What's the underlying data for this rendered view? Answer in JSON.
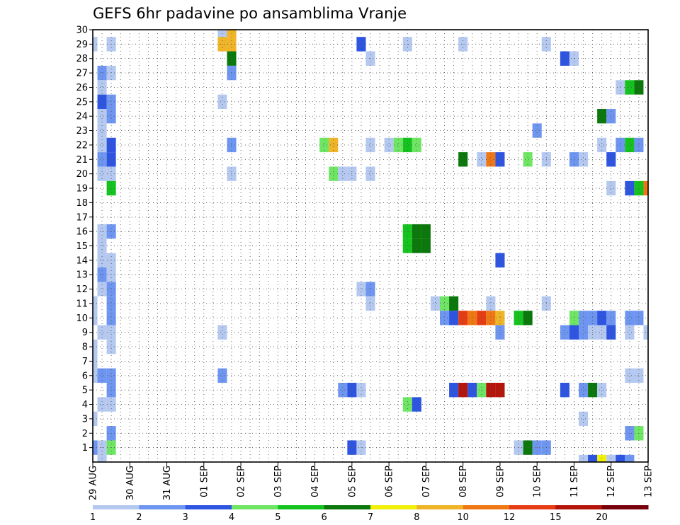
{
  "chart_data": {
    "type": "heatmap",
    "title": "GEFS 6hr padavine po ansamblima Vranje",
    "xlabel": "",
    "ylabel": "",
    "x_ticks": [
      "29 AUG",
      "30 AUG",
      "31 AUG",
      "01 SEP",
      "02 SEP",
      "03 SEP",
      "04 SEP",
      "05 SEP",
      "06 SEP",
      "07 SEP",
      "08 SEP",
      "09 SEP",
      "10 SEP",
      "11 SEP",
      "12 SEP",
      "13 SEP"
    ],
    "y_ticks": [
      1,
      2,
      3,
      4,
      5,
      6,
      7,
      8,
      9,
      10,
      11,
      12,
      13,
      14,
      15,
      16,
      17,
      18,
      19,
      20,
      21,
      22,
      23,
      24,
      25,
      26,
      27,
      28,
      29,
      30
    ],
    "x_range_steps": [
      0,
      60
    ],
    "y_range": [
      0,
      30
    ],
    "grid": true,
    "steps_per_day": 4,
    "colorbar": {
      "labels": [
        "1",
        "2",
        "3",
        "4",
        "5",
        "6",
        "7",
        "8",
        "10",
        "12",
        "15",
        "20"
      ],
      "colors": [
        "#b4c8f0",
        "#6e96f0",
        "#2d55e1",
        "#6ee664",
        "#14c31e",
        "#0a780a",
        "#f0f00a",
        "#f0b428",
        "#f07814",
        "#e63c14",
        "#b4140a",
        "#78000a"
      ]
    },
    "cells": [
      {
        "m": 30,
        "s": [
          [
            14,
            "#b4c8f0"
          ],
          [
            15,
            "#f0b428"
          ]
        ]
      },
      {
        "m": 29,
        "s": [
          [
            0,
            "#b4c8f0"
          ],
          [
            2,
            "#b4c8f0"
          ],
          [
            14,
            "#f0b428"
          ],
          [
            15,
            "#f0b428"
          ],
          [
            29,
            "#2d55e1"
          ],
          [
            34,
            "#b4c8f0"
          ],
          [
            40,
            "#b4c8f0"
          ],
          [
            49,
            "#b4c8f0"
          ]
        ]
      },
      {
        "m": 28,
        "s": [
          [
            15,
            "#0a780a"
          ],
          [
            30,
            "#b4c8f0"
          ],
          [
            51,
            "#2d55e1"
          ],
          [
            52,
            "#b4c8f0"
          ]
        ]
      },
      {
        "m": 27,
        "s": [
          [
            1,
            "#6e96f0"
          ],
          [
            2,
            "#b4c8f0"
          ],
          [
            15,
            "#6e96f0"
          ]
        ]
      },
      {
        "m": 26,
        "s": [
          [
            1,
            "#b4c8f0"
          ],
          [
            57,
            "#b4c8f0"
          ],
          [
            58,
            "#14c31e"
          ],
          [
            59,
            "#0a780a"
          ]
        ]
      },
      {
        "m": 25,
        "s": [
          [
            1,
            "#2d55e1"
          ],
          [
            2,
            "#6e96f0"
          ],
          [
            14,
            "#b4c8f0"
          ]
        ]
      },
      {
        "m": 24,
        "s": [
          [
            1,
            "#b4c8f0"
          ],
          [
            2,
            "#6e96f0"
          ],
          [
            55,
            "#0a780a"
          ],
          [
            56,
            "#6e96f0"
          ]
        ]
      },
      {
        "m": 23,
        "s": [
          [
            1,
            "#b4c8f0"
          ],
          [
            48,
            "#6e96f0"
          ]
        ]
      },
      {
        "m": 22,
        "s": [
          [
            1,
            "#b4c8f0"
          ],
          [
            2,
            "#2d55e1"
          ],
          [
            15,
            "#6e96f0"
          ],
          [
            25,
            "#6ee664"
          ],
          [
            26,
            "#f0b428"
          ],
          [
            30,
            "#b4c8f0"
          ],
          [
            32,
            "#b4c8f0"
          ],
          [
            33,
            "#6ee664"
          ],
          [
            34,
            "#14c31e"
          ],
          [
            35,
            "#6ee664"
          ],
          [
            55,
            "#b4c8f0"
          ],
          [
            57,
            "#6e96f0"
          ],
          [
            58,
            "#14c31e"
          ],
          [
            59,
            "#6e96f0"
          ]
        ]
      },
      {
        "m": 21,
        "s": [
          [
            1,
            "#6e96f0"
          ],
          [
            2,
            "#2d55e1"
          ],
          [
            40,
            "#0a780a"
          ],
          [
            42,
            "#b4c8f0"
          ],
          [
            43,
            "#f07814"
          ],
          [
            44,
            "#2d55e1"
          ],
          [
            47,
            "#6ee664"
          ],
          [
            49,
            "#b4c8f0"
          ],
          [
            52,
            "#6e96f0"
          ],
          [
            53,
            "#b4c8f0"
          ],
          [
            56,
            "#2d55e1"
          ]
        ]
      },
      {
        "m": 20,
        "s": [
          [
            1,
            "#b4c8f0"
          ],
          [
            2,
            "#b4c8f0"
          ],
          [
            15,
            "#b4c8f0"
          ],
          [
            26,
            "#6ee664"
          ],
          [
            27,
            "#b4c8f0"
          ],
          [
            28,
            "#b4c8f0"
          ],
          [
            30,
            "#b4c8f0"
          ]
        ]
      },
      {
        "m": 19,
        "s": [
          [
            2,
            "#14c31e"
          ],
          [
            56,
            "#b4c8f0"
          ],
          [
            58,
            "#2d55e1"
          ],
          [
            59,
            "#14c31e"
          ],
          [
            60,
            "#f07814"
          ]
        ]
      },
      {
        "m": 16,
        "s": [
          [
            1,
            "#b4c8f0"
          ],
          [
            2,
            "#6e96f0"
          ],
          [
            34,
            "#14c31e"
          ],
          [
            35,
            "#0a780a"
          ],
          [
            36,
            "#0a780a"
          ]
        ]
      },
      {
        "m": 15,
        "s": [
          [
            1,
            "#b4c8f0"
          ],
          [
            34,
            "#14c31e"
          ],
          [
            35,
            "#0a780a"
          ],
          [
            36,
            "#0a780a"
          ]
        ]
      },
      {
        "m": 14,
        "s": [
          [
            1,
            "#b4c8f0"
          ],
          [
            2,
            "#b4c8f0"
          ],
          [
            44,
            "#2d55e1"
          ]
        ]
      },
      {
        "m": 13,
        "s": [
          [
            1,
            "#6e96f0"
          ],
          [
            2,
            "#b4c8f0"
          ]
        ]
      },
      {
        "m": 12,
        "s": [
          [
            1,
            "#b4c8f0"
          ],
          [
            2,
            "#6e96f0"
          ],
          [
            29,
            "#b4c8f0"
          ],
          [
            30,
            "#6e96f0"
          ]
        ]
      },
      {
        "m": 11,
        "s": [
          [
            0,
            "#b4c8f0"
          ],
          [
            2,
            "#6e96f0"
          ],
          [
            30,
            "#b4c8f0"
          ],
          [
            37,
            "#b4c8f0"
          ],
          [
            38,
            "#6ee664"
          ],
          [
            39,
            "#0a780a"
          ],
          [
            43,
            "#b4c8f0"
          ],
          [
            49,
            "#b4c8f0"
          ]
        ]
      },
      {
        "m": 10,
        "s": [
          [
            0,
            "#b4c8f0"
          ],
          [
            2,
            "#6e96f0"
          ],
          [
            38,
            "#6e96f0"
          ],
          [
            39,
            "#2d55e1"
          ],
          [
            40,
            "#e63c14"
          ],
          [
            41,
            "#f07814"
          ],
          [
            42,
            "#e63c14"
          ],
          [
            43,
            "#f07814"
          ],
          [
            44,
            "#f0b428"
          ],
          [
            46,
            "#14c31e"
          ],
          [
            47,
            "#0a780a"
          ],
          [
            52,
            "#6ee664"
          ],
          [
            53,
            "#6e96f0"
          ],
          [
            54,
            "#6e96f0"
          ],
          [
            55,
            "#2d55e1"
          ],
          [
            56,
            "#6e96f0"
          ],
          [
            58,
            "#6e96f0"
          ],
          [
            59,
            "#6e96f0"
          ]
        ]
      },
      {
        "m": 9,
        "s": [
          [
            1,
            "#b4c8f0"
          ],
          [
            2,
            "#b4c8f0"
          ],
          [
            14,
            "#b4c8f0"
          ],
          [
            44,
            "#6e96f0"
          ],
          [
            51,
            "#6e96f0"
          ],
          [
            52,
            "#2d55e1"
          ],
          [
            53,
            "#6e96f0"
          ],
          [
            54,
            "#b4c8f0"
          ],
          [
            55,
            "#b4c8f0"
          ],
          [
            56,
            "#2d55e1"
          ],
          [
            58,
            "#b4c8f0"
          ],
          [
            60,
            "#b4c8f0"
          ]
        ]
      },
      {
        "m": 8,
        "s": [
          [
            0,
            "#b4c8f0"
          ],
          [
            2,
            "#b4c8f0"
          ]
        ]
      },
      {
        "m": 7,
        "s": [
          [
            0,
            "#b4c8f0"
          ]
        ]
      },
      {
        "m": 6,
        "s": [
          [
            0,
            "#b4c8f0"
          ],
          [
            1,
            "#6e96f0"
          ],
          [
            2,
            "#6e96f0"
          ],
          [
            14,
            "#6e96f0"
          ],
          [
            58,
            "#b4c8f0"
          ],
          [
            59,
            "#b4c8f0"
          ]
        ]
      },
      {
        "m": 5,
        "s": [
          [
            2,
            "#6e96f0"
          ],
          [
            27,
            "#6e96f0"
          ],
          [
            28,
            "#2d55e1"
          ],
          [
            29,
            "#b4c8f0"
          ],
          [
            39,
            "#2d55e1"
          ],
          [
            40,
            "#b4140a"
          ],
          [
            41,
            "#2d55e1"
          ],
          [
            42,
            "#6ee664"
          ],
          [
            43,
            "#b4140a"
          ],
          [
            44,
            "#b4140a"
          ],
          [
            51,
            "#2d55e1"
          ],
          [
            53,
            "#6e96f0"
          ],
          [
            54,
            "#0a780a"
          ],
          [
            55,
            "#b4c8f0"
          ]
        ]
      },
      {
        "m": 4,
        "s": [
          [
            1,
            "#b4c8f0"
          ],
          [
            2,
            "#b4c8f0"
          ],
          [
            34,
            "#6ee664"
          ],
          [
            35,
            "#2d55e1"
          ]
        ]
      },
      {
        "m": 3,
        "s": [
          [
            0,
            "#b4c8f0"
          ],
          [
            53,
            "#b4c8f0"
          ]
        ]
      },
      {
        "m": 2,
        "s": [
          [
            2,
            "#6e96f0"
          ],
          [
            58,
            "#6e96f0"
          ],
          [
            59,
            "#6ee664"
          ]
        ]
      },
      {
        "m": 1,
        "s": [
          [
            0,
            "#6e96f0"
          ],
          [
            1,
            "#b4c8f0"
          ],
          [
            2,
            "#6ee664"
          ],
          [
            28,
            "#2d55e1"
          ],
          [
            29,
            "#b4c8f0"
          ],
          [
            46,
            "#b4c8f0"
          ],
          [
            47,
            "#0a780a"
          ],
          [
            48,
            "#6e96f0"
          ],
          [
            49,
            "#6e96f0"
          ]
        ]
      },
      {
        "m": 0,
        "s": [
          [
            1,
            "#b4c8f0"
          ],
          [
            53,
            "#b4c8f0"
          ],
          [
            54,
            "#2d55e1"
          ],
          [
            55,
            "#f0f00a"
          ],
          [
            56,
            "#b4c8f0"
          ],
          [
            57,
            "#2d55e1"
          ],
          [
            58,
            "#6e96f0"
          ]
        ]
      }
    ]
  }
}
